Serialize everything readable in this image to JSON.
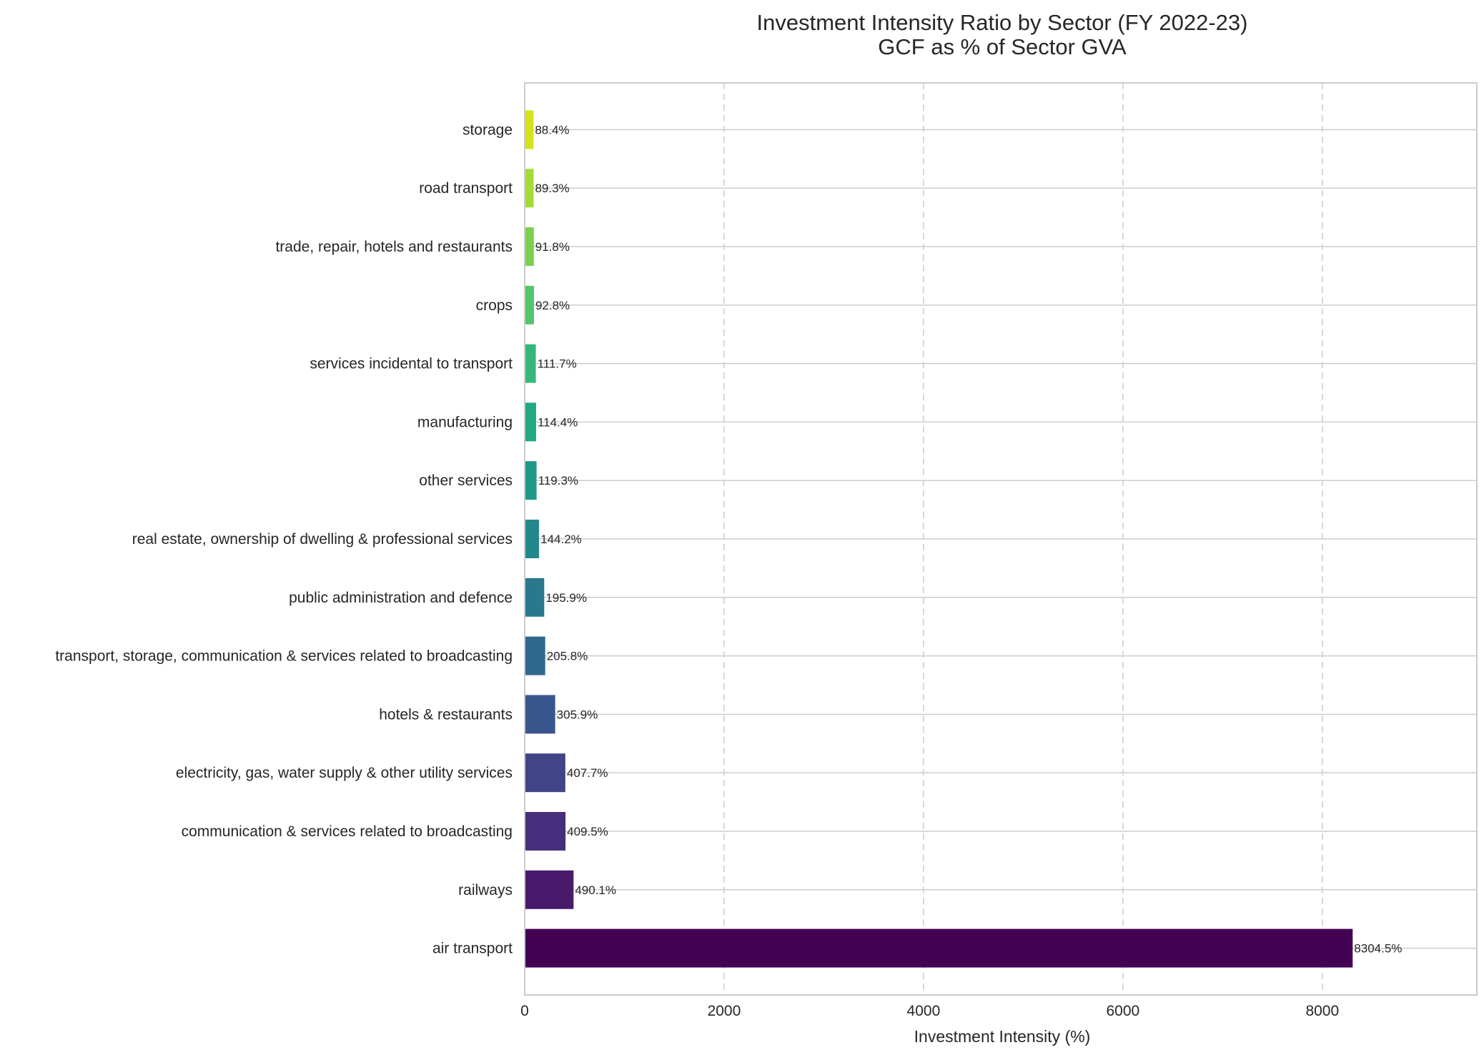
{
  "chart_data": {
    "type": "bar",
    "orientation": "horizontal",
    "title": "Investment Intensity Ratio by Sector (FY 2022-23)",
    "subtitle": "GCF as % of Sector GVA",
    "xlabel": "Investment Intensity (%)",
    "ylabel": "",
    "xlim": [
      0,
      9550
    ],
    "xticks": [
      0,
      2000,
      4000,
      6000,
      8000
    ],
    "grid": {
      "x": true,
      "x_style": "dashed",
      "y": true
    },
    "legend": "none",
    "categories": [
      "air transport",
      "railways",
      "communication & services related to broadcasting",
      "electricity, gas, water supply & other utility services",
      "hotels & restaurants",
      "transport, storage, communication & services related to broadcasting",
      "public administration and defence",
      "real estate, ownership of dwelling & professional services",
      "other services",
      "manufacturing",
      "services incidental to transport",
      "crops",
      "trade, repair, hotels and restaurants",
      "road transport",
      "storage"
    ],
    "values": [
      8304.5,
      490.1,
      409.5,
      407.7,
      305.9,
      205.8,
      195.9,
      144.2,
      119.3,
      114.4,
      111.7,
      92.8,
      91.8,
      89.3,
      88.4
    ],
    "value_labels": [
      "8304.5%",
      "490.1%",
      "409.5%",
      "407.7%",
      "305.9%",
      "205.8%",
      "195.9%",
      "144.2%",
      "119.3%",
      "114.4%",
      "111.7%",
      "92.8%",
      "91.8%",
      "89.3%",
      "88.4%"
    ],
    "colors": [
      "#440154",
      "#481a6c",
      "#472f7d",
      "#414487",
      "#39568c",
      "#31688e",
      "#2a788e",
      "#23888e",
      "#1f988b",
      "#22a884",
      "#35b779",
      "#54c568",
      "#7ad151",
      "#a5db36",
      "#d2e21b"
    ]
  }
}
